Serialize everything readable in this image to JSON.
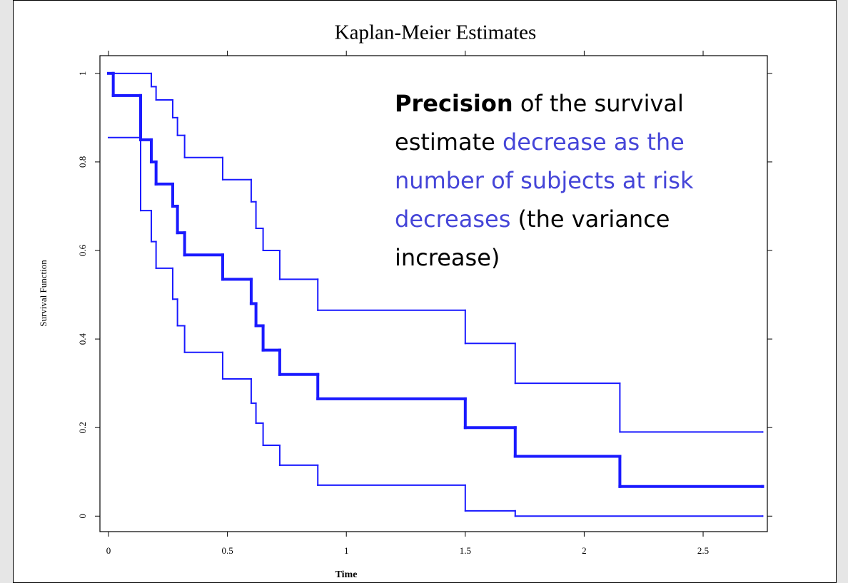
{
  "chart_data": {
    "type": "step",
    "title": "Kaplan-Meier Estimates",
    "x_label": "Time",
    "y_label": "Survival Function",
    "xlim": [
      -0.036,
      2.77
    ],
    "ylim": [
      -0.035,
      1.04
    ],
    "xticks": [
      0,
      0.5,
      1,
      1.5,
      2,
      2.5
    ],
    "yticks": [
      0,
      0.2,
      0.4,
      0.6,
      0.8,
      1
    ],
    "series": [
      {
        "color": "#1a1aff",
        "width": 4,
        "x": [
          0,
          0.02,
          0.135,
          0.18,
          0.2,
          0.27,
          0.29,
          0.32,
          0.48,
          0.6,
          0.62,
          0.65,
          0.72,
          0.88,
          1.5,
          1.71,
          2.15,
          2.75
        ],
        "values": [
          1,
          0.95,
          0.85,
          0.8,
          0.75,
          0.7,
          0.64,
          0.59,
          0.535,
          0.48,
          0.43,
          0.375,
          0.32,
          0.265,
          0.2,
          0.135,
          0.067,
          0.067
        ]
      },
      {
        "color": "#1a1aff",
        "width": 2,
        "x": [
          0,
          0.18,
          0.2,
          0.27,
          0.29,
          0.32,
          0.48,
          0.6,
          0.62,
          0.65,
          0.72,
          0.88,
          1.5,
          1.71,
          2.15,
          2.75
        ],
        "values": [
          1,
          0.97,
          0.94,
          0.9,
          0.86,
          0.81,
          0.76,
          0.71,
          0.65,
          0.6,
          0.535,
          0.465,
          0.39,
          0.3,
          0.19,
          0.19
        ]
      },
      {
        "color": "#1a1aff",
        "width": 2,
        "x": [
          0,
          0.135,
          0.18,
          0.2,
          0.27,
          0.29,
          0.32,
          0.48,
          0.6,
          0.62,
          0.65,
          0.72,
          0.88,
          1.5,
          1.71,
          2.75
        ],
        "values": [
          0.855,
          0.69,
          0.62,
          0.56,
          0.49,
          0.43,
          0.37,
          0.31,
          0.255,
          0.21,
          0.16,
          0.115,
          0.07,
          0.012,
          0,
          0
        ]
      }
    ],
    "annotation": [
      {
        "text": "Precision",
        "color": "#000000",
        "bold": true
      },
      {
        "text": "of the survival estimate",
        "color": "#000000",
        "bold": false
      },
      {
        "text": "decrease as the number of subjects at risk decreases",
        "color": "#4545d8",
        "bold": false
      },
      {
        "text": "(the variance increase)",
        "color": "#000000",
        "bold": false
      }
    ]
  }
}
